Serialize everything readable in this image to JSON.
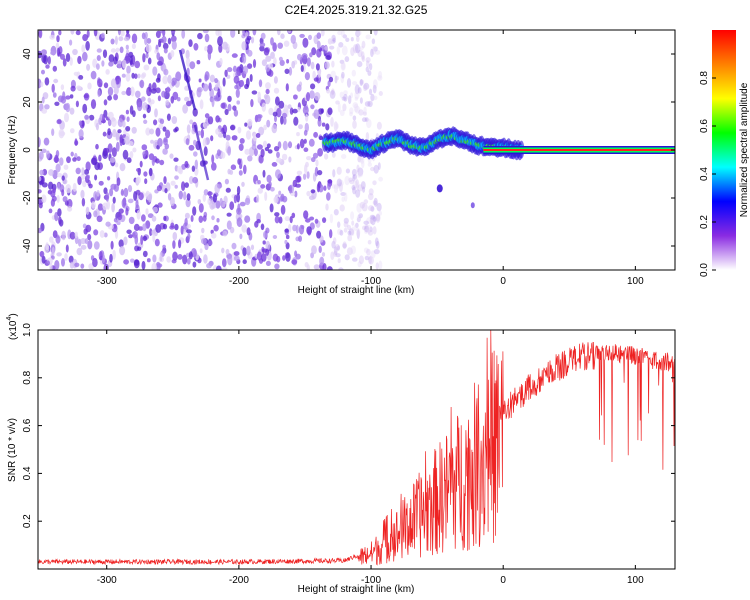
{
  "title": "C2E4.2025.319.21.32.G25",
  "chart_data": [
    {
      "type": "heatmap",
      "name": "spectrogram",
      "xlabel": "Height of straight line (km)",
      "ylabel": "Frequency (Hz)",
      "xlim": [
        -352,
        130
      ],
      "ylim": [
        -50,
        50
      ],
      "xticks": [
        -300,
        -200,
        -100,
        0,
        100
      ],
      "yticks": [
        -40,
        -20,
        0,
        20,
        40
      ],
      "xtick_labels": [
        "-300",
        "-200",
        "-100",
        "0",
        "100"
      ],
      "ytick_labels": [
        "-40",
        "-20",
        "0",
        "20",
        "40"
      ],
      "noise_region_x": [
        -352,
        -100
      ],
      "signal_track": [
        {
          "x": -130,
          "f": 3
        },
        {
          "x": -120,
          "f": 4
        },
        {
          "x": -110,
          "f": 2
        },
        {
          "x": -100,
          "f": 0
        },
        {
          "x": -90,
          "f": 3
        },
        {
          "x": -80,
          "f": 5
        },
        {
          "x": -70,
          "f": 2
        },
        {
          "x": -60,
          "f": 1
        },
        {
          "x": -50,
          "f": 4
        },
        {
          "x": -40,
          "f": 6
        },
        {
          "x": -30,
          "f": 4
        },
        {
          "x": -20,
          "f": 2
        },
        {
          "x": -10,
          "f": 1
        },
        {
          "x": 0,
          "f": 1
        },
        {
          "x": 10,
          "f": 0
        },
        {
          "x": 130,
          "f": 0
        }
      ],
      "steady_line": {
        "x_start": -15,
        "x_end": 130,
        "f": 0
      }
    },
    {
      "type": "colorbar",
      "name": "amplitude-scale",
      "label": "Normalized spectral amplitude",
      "range": [
        0,
        1
      ],
      "ticks": [
        0.0,
        0.2,
        0.4,
        0.6,
        0.8
      ],
      "tick_labels": [
        "0.0",
        "0.2",
        "0.4",
        "0.6",
        "0.8"
      ],
      "colors": [
        "#ffffff",
        "#8a2be2",
        "#0000ff",
        "#00ffff",
        "#00ff00",
        "#ffff00",
        "#ff8000",
        "#ff0000"
      ]
    },
    {
      "type": "line",
      "name": "snr",
      "xlabel": "Height of straight line (km)",
      "ylabel": "SNR (10 * v/v)",
      "y_multiplier_base": "(x10",
      "y_multiplier_exp": "4",
      "y_multiplier_close": ")",
      "xlim": [
        -352,
        130
      ],
      "ylim": [
        0,
        1.0
      ],
      "xticks": [
        -300,
        -200,
        -100,
        0,
        100
      ],
      "yticks": [
        0.2,
        0.4,
        0.6,
        0.8,
        1.0
      ],
      "xtick_labels": [
        "-300",
        "-200",
        "-100",
        "0",
        "100"
      ],
      "ytick_labels": [
        "0.2",
        "0.4",
        "0.6",
        "0.8",
        "1.0"
      ],
      "series_color": "#ee2222",
      "envelope": [
        {
          "x": -352,
          "y": 0.03
        },
        {
          "x": -200,
          "y": 0.03
        },
        {
          "x": -120,
          "y": 0.035
        },
        {
          "x": -100,
          "y": 0.08
        },
        {
          "x": -80,
          "y": 0.18
        },
        {
          "x": -60,
          "y": 0.3
        },
        {
          "x": -40,
          "y": 0.42
        },
        {
          "x": -20,
          "y": 0.55
        },
        {
          "x": -10,
          "y": 0.62
        },
        {
          "x": 0,
          "y": 0.72
        },
        {
          "x": 20,
          "y": 0.82
        },
        {
          "x": 40,
          "y": 0.9
        },
        {
          "x": 60,
          "y": 0.95
        },
        {
          "x": 80,
          "y": 0.95
        },
        {
          "x": 100,
          "y": 0.93
        },
        {
          "x": 130,
          "y": 0.9
        }
      ]
    }
  ]
}
